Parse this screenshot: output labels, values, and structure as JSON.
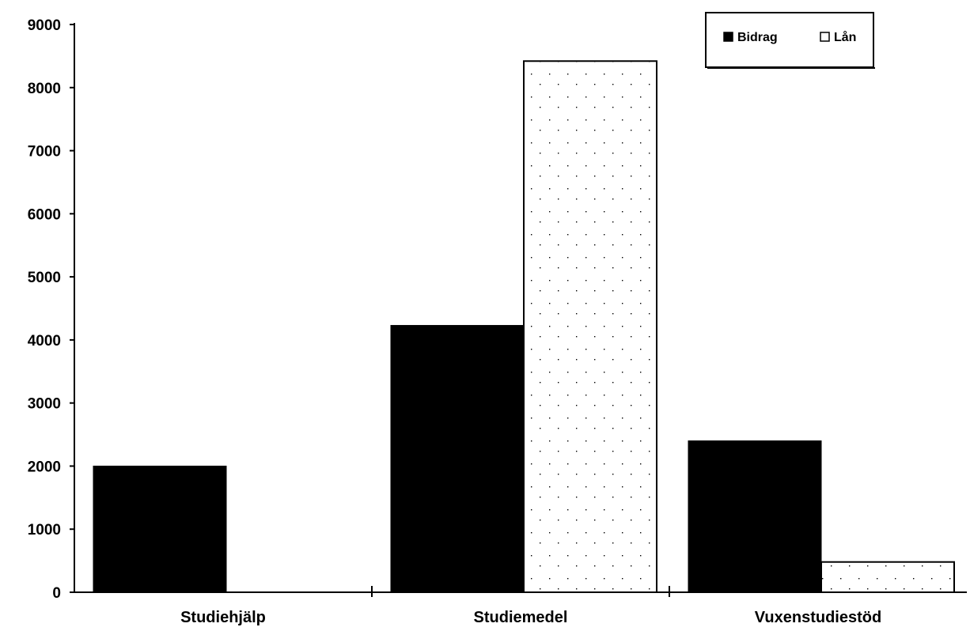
{
  "chart_data": {
    "type": "bar",
    "categories": [
      "Studiehjälp",
      "Studiemedel",
      "Vuxenstudiestöd"
    ],
    "series": [
      {
        "name": "Bidrag",
        "values": [
          2000,
          4230,
          2400
        ],
        "color": "#000000"
      },
      {
        "name": "Lån",
        "values": [
          0,
          8420,
          480
        ],
        "color": "#ffffff"
      }
    ],
    "ylim": [
      0,
      9000
    ],
    "yticks": [
      0,
      1000,
      2000,
      3000,
      4000,
      5000,
      6000,
      7000,
      8000,
      9000
    ],
    "grid": false,
    "legend_position": "top-right"
  }
}
